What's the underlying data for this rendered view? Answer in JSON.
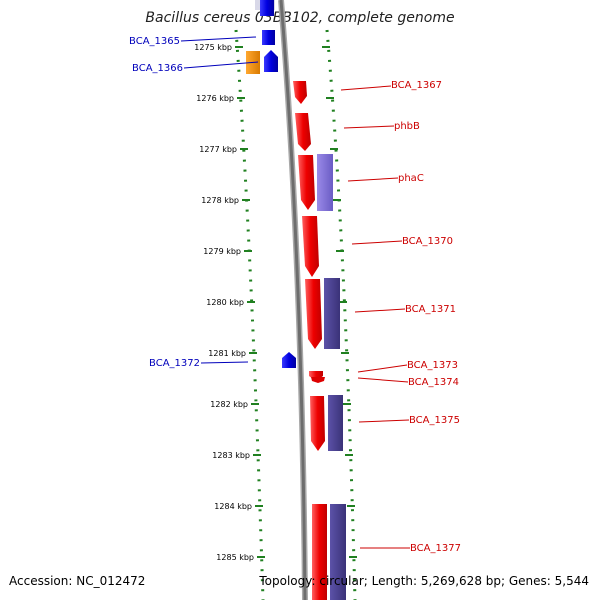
{
  "header": {
    "title": "Bacillus cereus 03BB102, complete genome"
  },
  "footer": {
    "accession": "Accession: NC_012472",
    "summary": "Topology: circular; Length: 5,269,628 bp; Genes: 5,544"
  },
  "colors": {
    "reverse_strand": "#0000dd",
    "forward_strand": "#ee0000",
    "orange_gene": "#f49415",
    "purple_light": "#8877dd",
    "purple_dark": "#4a4090",
    "ruler_dots": "#208020",
    "backbone": "#7a7a7a",
    "left_label": "#0000bb",
    "right_label": "#cc0000"
  },
  "ruler": {
    "unit": "kbp",
    "ticks": [
      {
        "label": "1275 kbp"
      },
      {
        "label": "1276 kbp"
      },
      {
        "label": "1277 kbp"
      },
      {
        "label": "1278 kbp"
      },
      {
        "label": "1279 kbp"
      },
      {
        "label": "1280 kbp"
      },
      {
        "label": "1281 kbp"
      },
      {
        "label": "1282 kbp"
      },
      {
        "label": "1283 kbp"
      },
      {
        "label": "1284 kbp"
      },
      {
        "label": "1285 kbp"
      }
    ]
  },
  "genes_left": [
    {
      "name": "BCA_1365"
    },
    {
      "name": "BCA_1366"
    },
    {
      "name": "BCA_1372"
    }
  ],
  "genes_right": [
    {
      "name": "BCA_1367"
    },
    {
      "name": "phbB"
    },
    {
      "name": "phaC"
    },
    {
      "name": "BCA_1370"
    },
    {
      "name": "BCA_1371"
    },
    {
      "name": "BCA_1373"
    },
    {
      "name": "BCA_1374"
    },
    {
      "name": "BCA_1375"
    },
    {
      "name": "BCA_1377"
    }
  ]
}
